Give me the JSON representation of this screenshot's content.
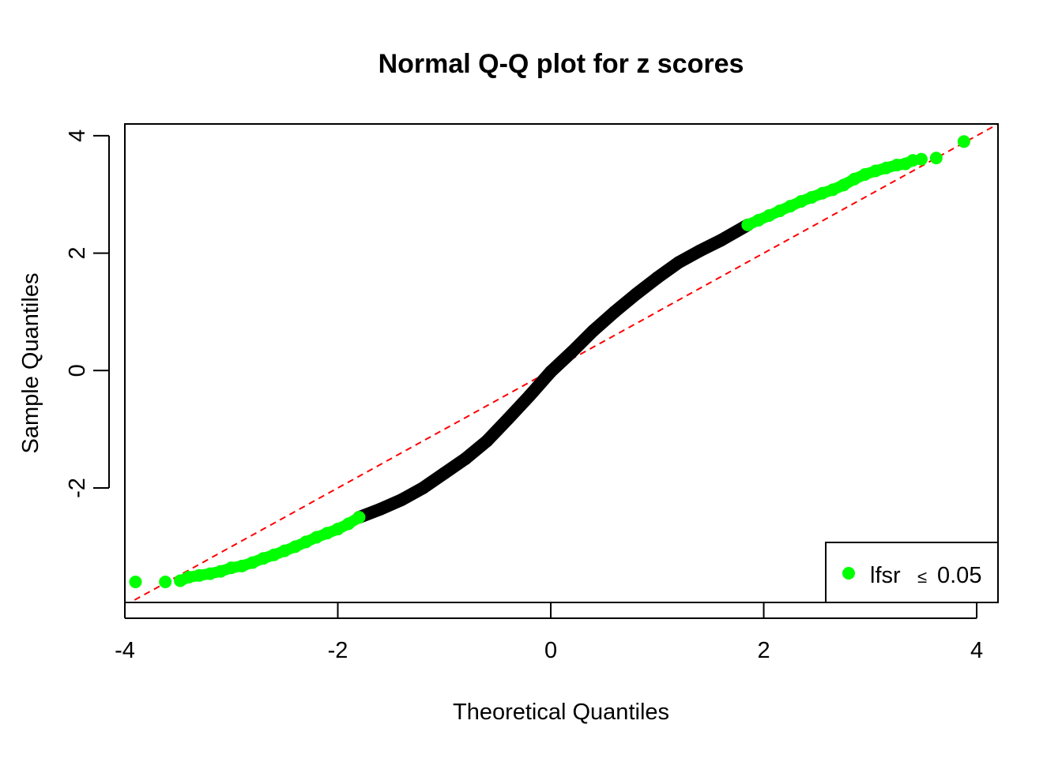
{
  "chart_data": {
    "type": "scatter",
    "title": "Normal Q-Q plot for z scores",
    "xlabel": "Theoretical Quantiles",
    "ylabel": "Sample Quantiles",
    "xlim": [
      -4.0,
      4.2
    ],
    "ylim": [
      -3.95,
      4.2
    ],
    "x_ticks": [
      -4,
      -2,
      0,
      2,
      4
    ],
    "y_ticks": [
      -2,
      0,
      2,
      4
    ],
    "x_tick_labels": [
      "-4",
      "-2",
      "0",
      "2",
      "4"
    ],
    "y_tick_labels": [
      "-2",
      "0",
      "2",
      "4"
    ],
    "grid": false,
    "legend": {
      "position": "bottom-right",
      "entries": [
        {
          "label": "lfsr",
          "symbol": "≤",
          "value": "0.05",
          "color": "#00FF00"
        }
      ]
    },
    "reference_line": {
      "slope": 1,
      "intercept": 0,
      "style": "dashed",
      "color": "#FF0000"
    },
    "series": [
      {
        "name": "lfsr ≤ 0.05",
        "color": "#00FF00",
        "points": [
          [
            -3.9,
            -3.6
          ],
          [
            -3.62,
            -3.6
          ],
          [
            -3.48,
            -3.58
          ],
          [
            -3.4,
            -3.52
          ],
          [
            -3.3,
            -3.49
          ],
          [
            -3.2,
            -3.46
          ],
          [
            -3.1,
            -3.42
          ],
          [
            -3.0,
            -3.36
          ],
          [
            -2.9,
            -3.33
          ],
          [
            -2.8,
            -3.27
          ],
          [
            -2.7,
            -3.2
          ],
          [
            -2.6,
            -3.14
          ],
          [
            -2.5,
            -3.07
          ],
          [
            -2.4,
            -3.0
          ],
          [
            -2.3,
            -2.92
          ],
          [
            -2.2,
            -2.84
          ],
          [
            -2.1,
            -2.77
          ],
          [
            -2.0,
            -2.7
          ],
          [
            -1.9,
            -2.61
          ],
          [
            -1.8,
            -2.5
          ],
          [
            1.85,
            2.48
          ],
          [
            1.95,
            2.56
          ],
          [
            2.05,
            2.64
          ],
          [
            2.15,
            2.72
          ],
          [
            2.25,
            2.8
          ],
          [
            2.35,
            2.88
          ],
          [
            2.45,
            2.95
          ],
          [
            2.55,
            3.02
          ],
          [
            2.65,
            3.08
          ],
          [
            2.75,
            3.16
          ],
          [
            2.85,
            3.26
          ],
          [
            2.95,
            3.34
          ],
          [
            3.05,
            3.4
          ],
          [
            3.15,
            3.45
          ],
          [
            3.25,
            3.5
          ],
          [
            3.33,
            3.52
          ],
          [
            3.4,
            3.58
          ],
          [
            3.48,
            3.6
          ],
          [
            3.62,
            3.62
          ],
          [
            3.88,
            3.9
          ]
        ]
      },
      {
        "name": "",
        "color": "#000000",
        "points": [
          [
            -1.8,
            -2.5
          ],
          [
            -1.6,
            -2.36
          ],
          [
            -1.4,
            -2.2
          ],
          [
            -1.2,
            -2.0
          ],
          [
            -1.0,
            -1.75
          ],
          [
            -0.8,
            -1.5
          ],
          [
            -0.6,
            -1.2
          ],
          [
            -0.4,
            -0.82
          ],
          [
            -0.2,
            -0.43
          ],
          [
            0.0,
            -0.02
          ],
          [
            0.2,
            0.32
          ],
          [
            0.4,
            0.68
          ],
          [
            0.6,
            1.0
          ],
          [
            0.8,
            1.3
          ],
          [
            1.0,
            1.58
          ],
          [
            1.2,
            1.84
          ],
          [
            1.4,
            2.04
          ],
          [
            1.6,
            2.22
          ],
          [
            1.85,
            2.48
          ]
        ]
      }
    ]
  }
}
